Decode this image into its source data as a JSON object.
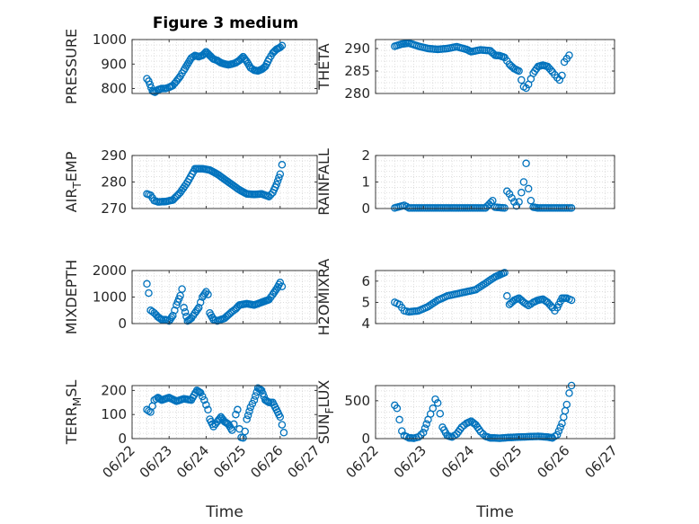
{
  "figure": {
    "title": "Figure 3 medium"
  },
  "chart_data": [
    {
      "type": "scatter",
      "title": "Figure 3 medium",
      "ylabel": "PRESSURE",
      "xlabel": "",
      "ylim": [
        780,
        1000
      ],
      "yticks": [
        800,
        900,
        1000
      ],
      "ytick_labels": [
        "800",
        "900",
        "1000"
      ],
      "xlim": [
        0,
        5
      ],
      "xticks": [
        0,
        1,
        2,
        3,
        4,
        5
      ],
      "xtick_labels": [],
      "grid": true,
      "anchors": [
        [
          0.4,
          840
        ],
        [
          0.45,
          830
        ],
        [
          0.55,
          790
        ],
        [
          0.62,
          785
        ],
        [
          0.7,
          795
        ],
        [
          0.8,
          800
        ],
        [
          0.9,
          800
        ],
        [
          1.0,
          805
        ],
        [
          1.1,
          812
        ],
        [
          1.2,
          830
        ],
        [
          1.3,
          850
        ],
        [
          1.4,
          875
        ],
        [
          1.5,
          900
        ],
        [
          1.6,
          925
        ],
        [
          1.7,
          935
        ],
        [
          1.8,
          930
        ],
        [
          1.9,
          935
        ],
        [
          2.0,
          950
        ],
        [
          2.1,
          935
        ],
        [
          2.2,
          920
        ],
        [
          2.3,
          915
        ],
        [
          2.4,
          905
        ],
        [
          2.5,
          900
        ],
        [
          2.6,
          897
        ],
        [
          2.7,
          900
        ],
        [
          2.8,
          905
        ],
        [
          2.9,
          915
        ],
        [
          3.0,
          930
        ],
        [
          3.1,
          910
        ],
        [
          3.2,
          885
        ],
        [
          3.3,
          875
        ],
        [
          3.4,
          872
        ],
        [
          3.5,
          878
        ],
        [
          3.6,
          890
        ],
        [
          3.7,
          920
        ],
        [
          3.8,
          945
        ],
        [
          3.9,
          960
        ],
        [
          4.0,
          968
        ],
        [
          4.05,
          975
        ]
      ]
    },
    {
      "type": "scatter",
      "title": "",
      "ylabel": "THETA",
      "xlabel": "",
      "ylim": [
        280,
        292
      ],
      "yticks": [
        280,
        285,
        290
      ],
      "ytick_labels": [
        "280",
        "285",
        "290"
      ],
      "xlim": [
        0,
        5
      ],
      "xticks": [
        0,
        1,
        2,
        3,
        4,
        5
      ],
      "xtick_labels": [],
      "grid": true,
      "anchors": [
        [
          0.4,
          290.5
        ],
        [
          0.55,
          291
        ],
        [
          0.7,
          291.2
        ],
        [
          0.9,
          290.5
        ],
        [
          1.1,
          290
        ],
        [
          1.3,
          289.8
        ],
        [
          1.5,
          290
        ],
        [
          1.7,
          290.4
        ],
        [
          1.9,
          289.8
        ],
        [
          2.0,
          289.3
        ],
        [
          2.2,
          289.7
        ],
        [
          2.4,
          289.5
        ],
        [
          2.5,
          288.5
        ],
        [
          2.6,
          288.4
        ],
        [
          2.7,
          288
        ],
        [
          2.8,
          286.5
        ],
        [
          2.9,
          285.5
        ],
        [
          3.0,
          285
        ],
        [
          3.05,
          283
        ],
        [
          3.1,
          281.5
        ],
        [
          3.15,
          281.2
        ],
        [
          3.2,
          282
        ],
        [
          3.3,
          284.5
        ],
        [
          3.4,
          286
        ],
        [
          3.5,
          286.3
        ],
        [
          3.6,
          286
        ],
        [
          3.7,
          284.8
        ],
        [
          3.8,
          283.5
        ],
        [
          3.85,
          283
        ],
        [
          3.9,
          284
        ],
        [
          3.95,
          287
        ],
        [
          4.05,
          288.5
        ]
      ]
    },
    {
      "type": "scatter",
      "title": "",
      "ylabel": "AIR_TEMP",
      "xlabel": "",
      "ylim": [
        270,
        290
      ],
      "yticks": [
        270,
        280,
        290
      ],
      "ytick_labels": [
        "270",
        "280",
        "290"
      ],
      "xlim": [
        0,
        5
      ],
      "xticks": [
        0,
        1,
        2,
        3,
        4,
        5
      ],
      "xtick_labels": [],
      "grid": true,
      "anchors": [
        [
          0.4,
          275.5
        ],
        [
          0.5,
          275
        ],
        [
          0.6,
          273
        ],
        [
          0.7,
          272.5
        ],
        [
          0.9,
          272.6
        ],
        [
          1.1,
          273.2
        ],
        [
          1.3,
          276
        ],
        [
          1.5,
          280
        ],
        [
          1.7,
          285
        ],
        [
          1.9,
          285
        ],
        [
          2.1,
          284.5
        ],
        [
          2.3,
          283
        ],
        [
          2.5,
          281
        ],
        [
          2.7,
          279
        ],
        [
          2.9,
          277
        ],
        [
          3.1,
          275.5
        ],
        [
          3.3,
          275.3
        ],
        [
          3.5,
          275.5
        ],
        [
          3.7,
          274.5
        ],
        [
          3.8,
          276
        ],
        [
          3.9,
          279
        ],
        [
          4.0,
          283
        ],
        [
          4.05,
          286.5
        ]
      ]
    },
    {
      "type": "scatter",
      "title": "",
      "ylabel": "RAINFALL",
      "xlabel": "",
      "ylim": [
        0,
        2
      ],
      "yticks": [
        0,
        1,
        2
      ],
      "ytick_labels": [
        "0",
        "1",
        "2"
      ],
      "xlim": [
        0,
        5
      ],
      "xticks": [
        0,
        1,
        2,
        3,
        4,
        5
      ],
      "xtick_labels": [],
      "grid": true,
      "anchors": [
        [
          0.4,
          0.02
        ],
        [
          0.6,
          0.12
        ],
        [
          0.7,
          0.02
        ],
        [
          2.3,
          0.02
        ],
        [
          2.45,
          0.3
        ],
        [
          2.5,
          0.05
        ],
        [
          2.7,
          0.02
        ],
        [
          2.75,
          0.65
        ],
        [
          2.8,
          0.55
        ],
        [
          2.85,
          0.4
        ],
        [
          2.9,
          0.25
        ],
        [
          2.95,
          0.1
        ],
        [
          3.0,
          0.25
        ],
        [
          3.05,
          0.6
        ],
        [
          3.1,
          1.0
        ],
        [
          3.15,
          1.7
        ],
        [
          3.2,
          0.75
        ],
        [
          3.25,
          0.3
        ],
        [
          3.3,
          0.05
        ],
        [
          3.4,
          0.02
        ],
        [
          4.1,
          0.02
        ]
      ]
    },
    {
      "type": "scatter",
      "title": "",
      "ylabel": "MIXDEPTH",
      "xlabel": "",
      "ylim": [
        0,
        2000
      ],
      "yticks": [
        0,
        1000,
        2000
      ],
      "ytick_labels": [
        "0",
        "1000",
        "2000"
      ],
      "xlim": [
        0,
        5
      ],
      "xticks": [
        0,
        1,
        2,
        3,
        4,
        5
      ],
      "xtick_labels": [],
      "grid": true,
      "anchors": [
        [
          0.4,
          1500
        ],
        [
          0.45,
          1150
        ],
        [
          0.5,
          500
        ],
        [
          0.6,
          400
        ],
        [
          0.7,
          250
        ],
        [
          0.8,
          150
        ],
        [
          0.9,
          150
        ],
        [
          1.0,
          100
        ],
        [
          1.1,
          300
        ],
        [
          1.2,
          700
        ],
        [
          1.3,
          1050
        ],
        [
          1.35,
          1300
        ],
        [
          1.4,
          600
        ],
        [
          1.5,
          100
        ],
        [
          1.6,
          200
        ],
        [
          1.7,
          400
        ],
        [
          1.8,
          600
        ],
        [
          1.9,
          1000
        ],
        [
          2.0,
          1200
        ],
        [
          2.05,
          1100
        ],
        [
          2.1,
          400
        ],
        [
          2.2,
          150
        ],
        [
          2.3,
          100
        ],
        [
          2.5,
          200
        ],
        [
          2.7,
          450
        ],
        [
          2.8,
          550
        ],
        [
          2.9,
          700
        ],
        [
          3.1,
          750
        ],
        [
          3.3,
          700
        ],
        [
          3.5,
          800
        ],
        [
          3.6,
          850
        ],
        [
          3.7,
          900
        ],
        [
          3.8,
          1100
        ],
        [
          3.9,
          1300
        ],
        [
          4.0,
          1550
        ],
        [
          4.05,
          1400
        ]
      ]
    },
    {
      "type": "scatter",
      "title": "",
      "ylabel": "H2OMIXRA",
      "xlabel": "",
      "ylim": [
        4,
        6.5
      ],
      "yticks": [
        4,
        5,
        6
      ],
      "ytick_labels": [
        "4",
        "5",
        "6"
      ],
      "xlim": [
        0,
        5
      ],
      "xticks": [
        0,
        1,
        2,
        3,
        4,
        5
      ],
      "xtick_labels": [],
      "grid": true,
      "anchors": [
        [
          0.4,
          5.0
        ],
        [
          0.5,
          4.9
        ],
        [
          0.6,
          4.6
        ],
        [
          0.7,
          4.55
        ],
        [
          0.9,
          4.6
        ],
        [
          1.1,
          4.8
        ],
        [
          1.3,
          5.1
        ],
        [
          1.5,
          5.3
        ],
        [
          1.7,
          5.4
        ],
        [
          1.9,
          5.5
        ],
        [
          2.1,
          5.6
        ],
        [
          2.3,
          5.9
        ],
        [
          2.5,
          6.2
        ],
        [
          2.6,
          6.3
        ],
        [
          2.7,
          6.4
        ],
        [
          2.75,
          5.3
        ],
        [
          2.8,
          4.9
        ],
        [
          2.9,
          5.1
        ],
        [
          3.0,
          5.2
        ],
        [
          3.1,
          5.0
        ],
        [
          3.2,
          4.85
        ],
        [
          3.3,
          5.0
        ],
        [
          3.4,
          5.1
        ],
        [
          3.5,
          5.15
        ],
        [
          3.6,
          5.0
        ],
        [
          3.7,
          4.75
        ],
        [
          3.75,
          4.6
        ],
        [
          3.8,
          4.75
        ],
        [
          3.9,
          5.2
        ],
        [
          4.0,
          5.2
        ],
        [
          4.1,
          5.1
        ]
      ]
    },
    {
      "type": "scatter",
      "title": "",
      "ylabel": "TERR_MSL",
      "xlabel": "Time",
      "ylim": [
        0,
        220
      ],
      "yticks": [
        0,
        100,
        200
      ],
      "ytick_labels": [
        "0",
        "100",
        "200"
      ],
      "xlim": [
        0,
        5
      ],
      "xticks": [
        0,
        1,
        2,
        3,
        4,
        5
      ],
      "xtick_labels": [
        "06/22",
        "06/23",
        "06/24",
        "06/25",
        "06/26",
        "06/27"
      ],
      "grid": true,
      "anchors": [
        [
          0.4,
          120
        ],
        [
          0.5,
          110
        ],
        [
          0.6,
          160
        ],
        [
          0.7,
          170
        ],
        [
          0.8,
          160
        ],
        [
          1.0,
          170
        ],
        [
          1.2,
          155
        ],
        [
          1.4,
          165
        ],
        [
          1.6,
          160
        ],
        [
          1.75,
          200
        ],
        [
          1.85,
          190
        ],
        [
          1.95,
          160
        ],
        [
          2.05,
          120
        ],
        [
          2.1,
          80
        ],
        [
          2.2,
          50
        ],
        [
          2.3,
          70
        ],
        [
          2.4,
          90
        ],
        [
          2.5,
          70
        ],
        [
          2.6,
          60
        ],
        [
          2.7,
          35
        ],
        [
          2.75,
          60
        ],
        [
          2.8,
          100
        ],
        [
          2.85,
          120
        ],
        [
          2.9,
          40
        ],
        [
          2.95,
          5
        ],
        [
          3.0,
          3
        ],
        [
          3.05,
          30
        ],
        [
          3.1,
          80
        ],
        [
          3.2,
          130
        ],
        [
          3.3,
          160
        ],
        [
          3.4,
          210
        ],
        [
          3.5,
          200
        ],
        [
          3.6,
          160
        ],
        [
          3.7,
          150
        ],
        [
          3.8,
          150
        ],
        [
          3.9,
          120
        ],
        [
          4.0,
          90
        ],
        [
          4.1,
          25
        ]
      ]
    },
    {
      "type": "scatter",
      "title": "",
      "ylabel": "SUN_FLUX",
      "xlabel": "Time",
      "ylim": [
        0,
        700
      ],
      "yticks": [
        0,
        500
      ],
      "ytick_labels": [
        "0",
        "500"
      ],
      "xlim": [
        0,
        5
      ],
      "xticks": [
        0,
        1,
        2,
        3,
        4,
        5
      ],
      "xtick_labels": [
        "06/22",
        "06/23",
        "06/24",
        "06/25",
        "06/26",
        "06/27"
      ],
      "grid": true,
      "anchors": [
        [
          0.4,
          440
        ],
        [
          0.45,
          400
        ],
        [
          0.5,
          250
        ],
        [
          0.55,
          100
        ],
        [
          0.6,
          40
        ],
        [
          0.7,
          10
        ],
        [
          0.8,
          5
        ],
        [
          0.9,
          20
        ],
        [
          1.0,
          80
        ],
        [
          1.1,
          250
        ],
        [
          1.2,
          400
        ],
        [
          1.25,
          520
        ],
        [
          1.3,
          470
        ],
        [
          1.35,
          330
        ],
        [
          1.4,
          150
        ],
        [
          1.5,
          40
        ],
        [
          1.6,
          20
        ],
        [
          1.7,
          60
        ],
        [
          1.8,
          150
        ],
        [
          1.9,
          200
        ],
        [
          2.0,
          230
        ],
        [
          2.1,
          180
        ],
        [
          2.2,
          90
        ],
        [
          2.3,
          30
        ],
        [
          2.4,
          10
        ],
        [
          2.6,
          5
        ],
        [
          2.8,
          15
        ],
        [
          3.0,
          20
        ],
        [
          3.2,
          25
        ],
        [
          3.4,
          30
        ],
        [
          3.6,
          20
        ],
        [
          3.7,
          10
        ],
        [
          3.8,
          50
        ],
        [
          3.9,
          200
        ],
        [
          4.0,
          450
        ],
        [
          4.05,
          600
        ],
        [
          4.1,
          700
        ]
      ]
    }
  ]
}
